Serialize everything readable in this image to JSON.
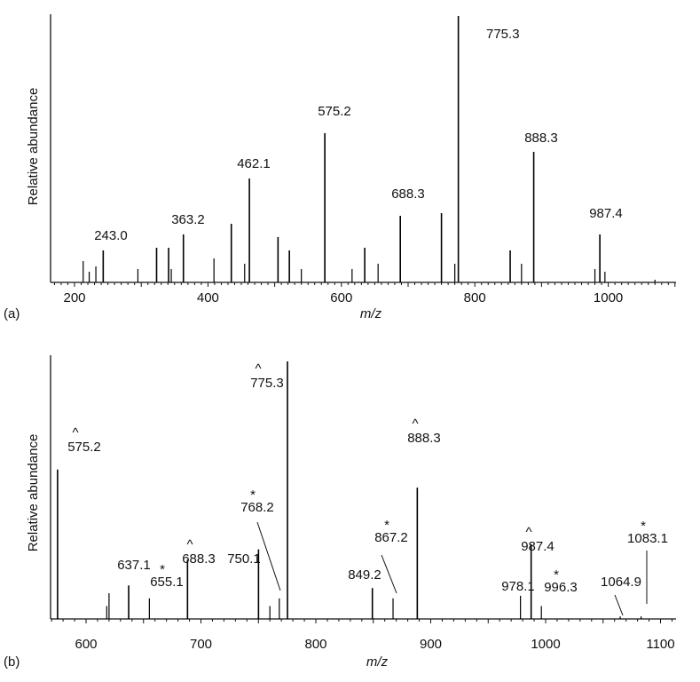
{
  "chart_data": [
    {
      "type": "bar",
      "panel_label": "(a)",
      "xlabel": "m/z",
      "ylabel": "Relative abundance",
      "xlim": [
        164,
        1101
      ],
      "ylim": [
        0,
        1
      ],
      "xticks": [
        200,
        400,
        600,
        800,
        1000
      ],
      "grid": false,
      "peaks": [
        {
          "mz": 213,
          "y": 0.08
        },
        {
          "mz": 222,
          "y": 0.04
        },
        {
          "mz": 232,
          "y": 0.06
        },
        {
          "mz": 243.0,
          "y": 0.12,
          "label": "243.0"
        },
        {
          "mz": 295,
          "y": 0.05
        },
        {
          "mz": 323,
          "y": 0.13
        },
        {
          "mz": 341,
          "y": 0.13
        },
        {
          "mz": 345,
          "y": 0.05
        },
        {
          "mz": 363.2,
          "y": 0.18,
          "label": "363.2"
        },
        {
          "mz": 409,
          "y": 0.09
        },
        {
          "mz": 435,
          "y": 0.22
        },
        {
          "mz": 455,
          "y": 0.07
        },
        {
          "mz": 462.1,
          "y": 0.39,
          "label": "462.1"
        },
        {
          "mz": 505,
          "y": 0.17
        },
        {
          "mz": 522,
          "y": 0.12
        },
        {
          "mz": 540,
          "y": 0.05
        },
        {
          "mz": 575.2,
          "y": 0.56,
          "label": "575.2"
        },
        {
          "mz": 616,
          "y": 0.05
        },
        {
          "mz": 635,
          "y": 0.13
        },
        {
          "mz": 655,
          "y": 0.07
        },
        {
          "mz": 688.3,
          "y": 0.25,
          "label": "688.3"
        },
        {
          "mz": 750,
          "y": 0.26
        },
        {
          "mz": 770,
          "y": 0.07
        },
        {
          "mz": 775.3,
          "y": 1.0,
          "label": "775.3"
        },
        {
          "mz": 853,
          "y": 0.12
        },
        {
          "mz": 870,
          "y": 0.07
        },
        {
          "mz": 888.3,
          "y": 0.49,
          "label": "888.3"
        },
        {
          "mz": 980,
          "y": 0.05
        },
        {
          "mz": 987.4,
          "y": 0.18,
          "label": "987.4"
        },
        {
          "mz": 995,
          "y": 0.04
        },
        {
          "mz": 1070,
          "y": 0.01
        }
      ]
    },
    {
      "type": "bar",
      "panel_label": "(b)",
      "xlabel": "m/z",
      "ylabel": "Relative abundance",
      "xlim": [
        569,
        1113
      ],
      "ylim": [
        0,
        1
      ],
      "xticks": [
        600,
        700,
        800,
        900,
        1000,
        1100
      ],
      "grid": false,
      "peaks": [
        {
          "mz": 575.2,
          "y": 0.58,
          "label": "575.2",
          "marker": "^"
        },
        {
          "mz": 618,
          "y": 0.05
        },
        {
          "mz": 620,
          "y": 0.1
        },
        {
          "mz": 637.1,
          "y": 0.13,
          "label": "637.1"
        },
        {
          "mz": 655.1,
          "y": 0.08,
          "label": "655.1",
          "marker": "*"
        },
        {
          "mz": 688.3,
          "y": 0.23,
          "label": "688.3",
          "marker": "^"
        },
        {
          "mz": 750.1,
          "y": 0.27,
          "label": "750.1"
        },
        {
          "mz": 760,
          "y": 0.05
        },
        {
          "mz": 768.2,
          "y": 0.08,
          "label": "768.2",
          "marker": "*"
        },
        {
          "mz": 775.3,
          "y": 1.0,
          "label": "775.3",
          "marker": "^"
        },
        {
          "mz": 849.2,
          "y": 0.12,
          "label": "849.2"
        },
        {
          "mz": 867.2,
          "y": 0.08,
          "label": "867.2",
          "marker": "*"
        },
        {
          "mz": 888.3,
          "y": 0.51,
          "label": "888.3",
          "marker": "^"
        },
        {
          "mz": 978.1,
          "y": 0.09,
          "label": "978.1"
        },
        {
          "mz": 987.4,
          "y": 0.29,
          "label": "987.4",
          "marker": "^"
        },
        {
          "mz": 996.3,
          "y": 0.05,
          "label": "996.3",
          "marker": "*"
        },
        {
          "mz": 1064.9,
          "y": 0.01,
          "label": "1064.9"
        },
        {
          "mz": 1083.1,
          "y": 0.01,
          "label": "1083.1",
          "marker": "*"
        }
      ]
    }
  ]
}
